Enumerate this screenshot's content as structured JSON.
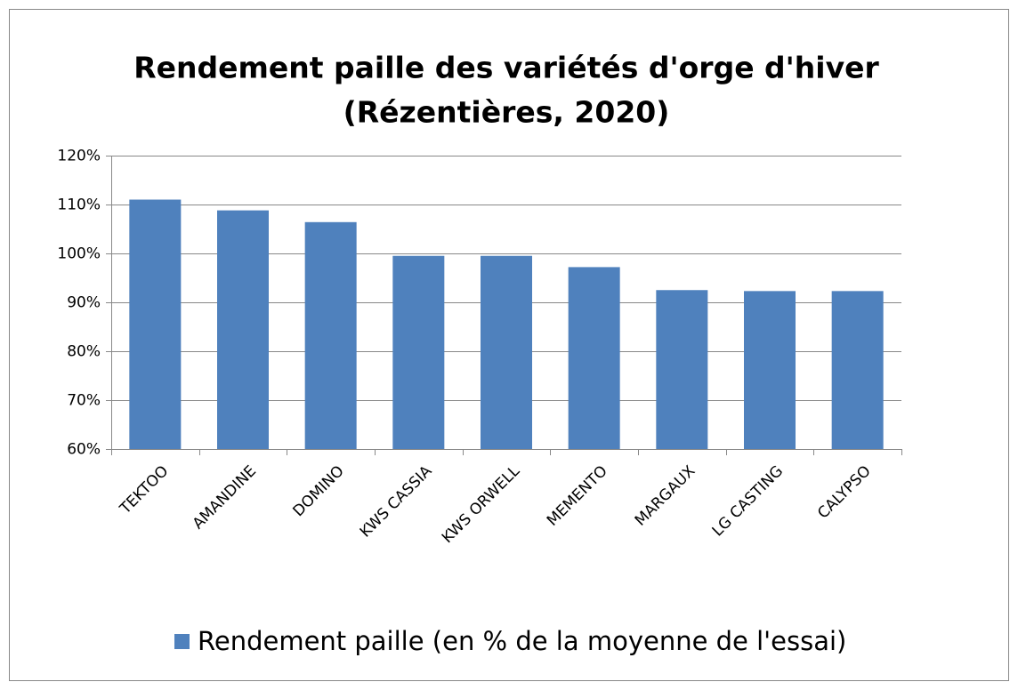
{
  "chart_data": {
    "type": "bar",
    "title": [
      "Rendement paille des variétés d'orge d'hiver",
      "(Rézentières, 2020)"
    ],
    "categories": [
      "TEKTOO",
      "AMANDINE",
      "DOMINO",
      "KWS CASSIA",
      "KWS ORWELL",
      "MEMENTO",
      "MARGAUX",
      "LG CASTING",
      "CALYPSO"
    ],
    "series": [
      {
        "name": "Rendement paille (en % de la moyenne de l'essai)",
        "color": "#4f81bd",
        "values": [
          111,
          108.8,
          106.4,
          99.5,
          99.5,
          97.2,
          92.5,
          92.3,
          92.3
        ]
      }
    ],
    "ylim": [
      60,
      120
    ],
    "yticks": [
      {
        "value": 60,
        "label": "60%"
      },
      {
        "value": 70,
        "label": "70%"
      },
      {
        "value": 80,
        "label": "80%"
      },
      {
        "value": 90,
        "label": "90%"
      },
      {
        "value": 100,
        "label": "100%"
      },
      {
        "value": 110,
        "label": "110%"
      },
      {
        "value": 120,
        "label": "120%"
      }
    ],
    "grid": true,
    "legend": "bottom"
  }
}
